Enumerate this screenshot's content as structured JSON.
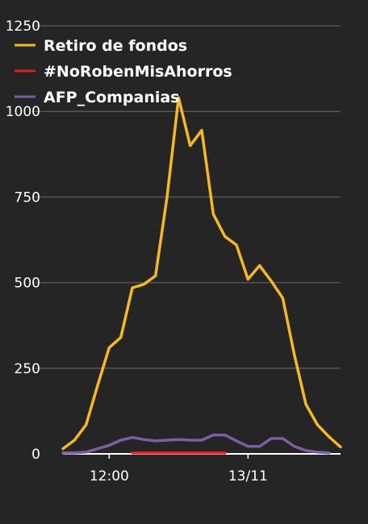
{
  "chart_data": {
    "type": "line",
    "title": "",
    "xlabel": "",
    "ylabel": "",
    "ylim": [
      0,
      1250
    ],
    "y_ticks": [
      0,
      250,
      500,
      750,
      1000,
      1250
    ],
    "x_ticks": [
      {
        "at": 4,
        "label": "12:00"
      },
      {
        "at": 16,
        "label": "13/11"
      }
    ],
    "grid": true,
    "legend_position": "top-left",
    "x": [
      0,
      1,
      2,
      3,
      4,
      5,
      6,
      7,
      8,
      9,
      10,
      11,
      12,
      13,
      14,
      15,
      16,
      17,
      18,
      19,
      20,
      21,
      22,
      23,
      24
    ],
    "series": [
      {
        "name": "Retiro de fondos",
        "color": "#f6b824",
        "values": [
          15,
          40,
          85,
          200,
          310,
          340,
          485,
          495,
          520,
          750,
          1040,
          900,
          945,
          700,
          635,
          610,
          510,
          550,
          505,
          455,
          290,
          145,
          85,
          50,
          20
        ]
      },
      {
        "name": "#NoRobenMisAhorros",
        "color": "#e02020",
        "values": [
          null,
          null,
          null,
          null,
          null,
          null,
          3,
          3,
          3,
          3,
          3,
          3,
          3,
          3,
          3,
          null,
          null,
          null,
          null,
          null,
          null,
          null,
          null,
          null,
          null
        ]
      },
      {
        "name": "AFP_Companias",
        "color": "#7b5ea3",
        "values": [
          3,
          3,
          5,
          15,
          25,
          40,
          48,
          42,
          38,
          40,
          42,
          40,
          40,
          55,
          55,
          38,
          22,
          22,
          45,
          45,
          22,
          10,
          5,
          3,
          null
        ]
      }
    ]
  }
}
